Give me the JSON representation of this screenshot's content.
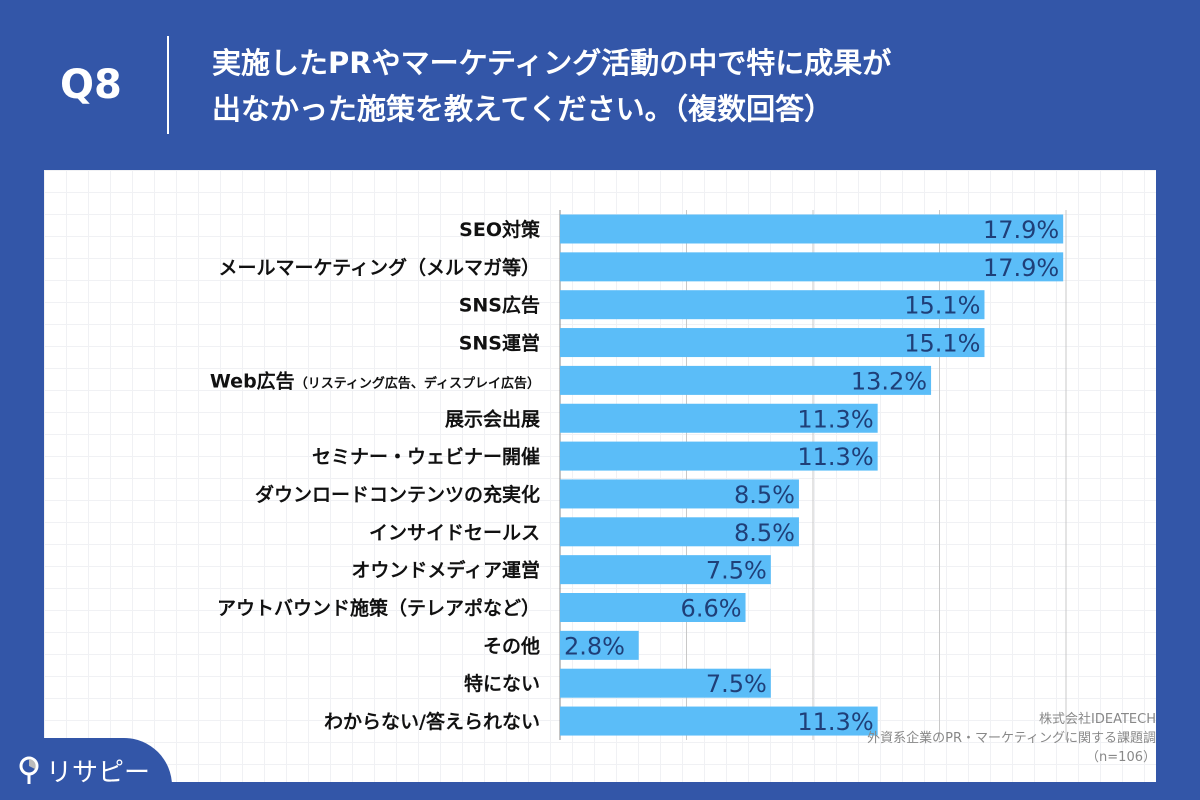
{
  "header": {
    "question": "Q8",
    "title_line1": "実施したPRやマーケティング活動の中で特に成果が",
    "title_line2": "出なかった施策を教えてください。（複数回答）"
  },
  "colors": {
    "background": "#3356a8",
    "bar": "#5bbdf8",
    "label_text": "#1f3f78"
  },
  "chart_data": {
    "type": "bar",
    "orientation": "horizontal",
    "categories": [
      "SEO対策",
      "メールマーケティング（メルマガ等）",
      "SNS広告",
      "SNS運営",
      "Web広告（リスティング広告、ディスプレイ広告）",
      "展示会出展",
      "セミナー・ウェビナー開催",
      "ダウンロードコンテンツの充実化",
      "インサイドセールス",
      "オウンドメディア運営",
      "アウトバウンド施策（テレアポなど）",
      "その他",
      "特にない",
      "わからない/答えられない"
    ],
    "values": [
      17.9,
      17.9,
      15.1,
      15.1,
      13.2,
      11.3,
      11.3,
      8.5,
      8.5,
      7.5,
      6.6,
      2.8,
      7.5,
      11.3
    ],
    "data_labels": [
      "17.9%",
      "17.9%",
      "15.1%",
      "15.1%",
      "13.2%",
      "11.3%",
      "11.3%",
      "8.5%",
      "8.5%",
      "7.5%",
      "6.6%",
      "2.8%",
      "7.5%",
      "11.3%"
    ],
    "xlim": [
      0,
      18
    ],
    "grid": true,
    "unit": "%"
  },
  "footer": {
    "company": "株式会社IDEATECH",
    "survey": "外資系企業のPR・マーケティングに関する課題調",
    "n": "（n=106）",
    "logo_text": "リサピー"
  }
}
